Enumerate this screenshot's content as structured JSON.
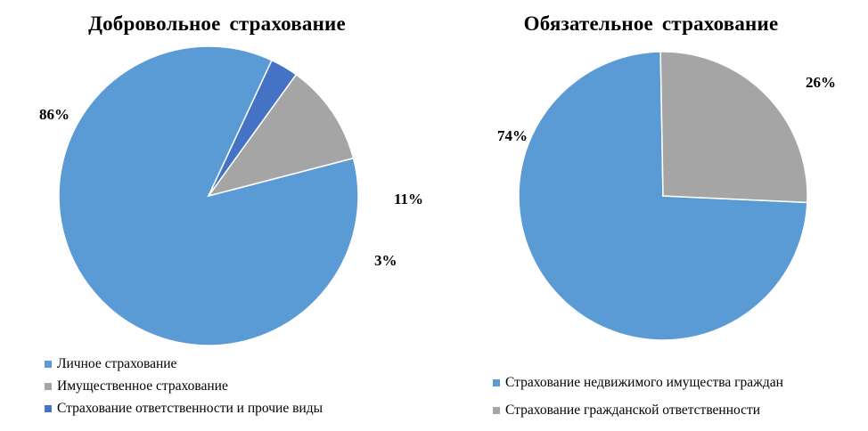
{
  "chart_data": [
    {
      "type": "pie",
      "title": "Добровольное страхование",
      "categories": [
        "Личное страхование",
        "Имущественное страхование",
        "Страхование ответственности и прочие виды"
      ],
      "values": [
        86,
        11,
        3
      ],
      "labels": [
        "86%",
        "11%",
        "3%"
      ],
      "colors": [
        "#5b9bd5",
        "#a5a5a5",
        "#4472c4"
      ],
      "legend": "bottom"
    },
    {
      "type": "pie",
      "title": "Обязательное страхование",
      "categories": [
        "Страхование недвижимого имущества граждан",
        "Страхование гражданской ответственности"
      ],
      "values": [
        74,
        26
      ],
      "labels": [
        "74%",
        "26%"
      ],
      "colors": [
        "#5b9bd5",
        "#a5a5a5"
      ],
      "legend": "bottom"
    }
  ]
}
